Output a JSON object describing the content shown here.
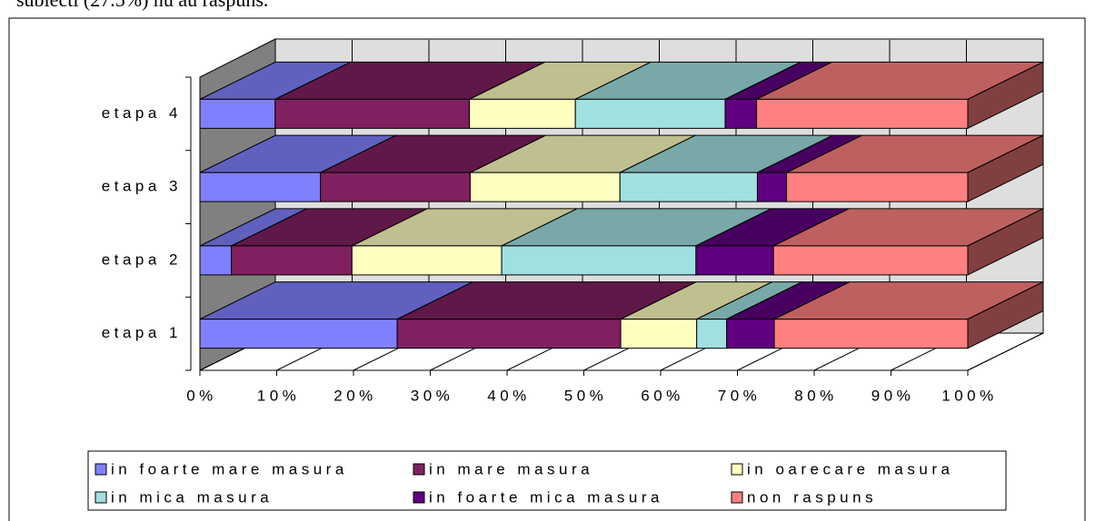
{
  "caption_above": "subiecti (27.5%) nu au raspuns.",
  "chart_data": {
    "type": "bar3d_stacked_horizontal",
    "categories": [
      "etapa 1",
      "etapa 2",
      "etapa 3",
      "etapa 4"
    ],
    "series": [
      {
        "name": "in foarte mare masura",
        "color": "#8080ff",
        "values": [
          25.7,
          4.1,
          15.7,
          9.8
        ]
      },
      {
        "name": "in mare masura",
        "color": "#802060",
        "values": [
          29.1,
          15.7,
          19.5,
          25.3
        ]
      },
      {
        "name": "in oarecare masura",
        "color": "#ffffc0",
        "values": [
          9.9,
          19.5,
          19.5,
          13.8
        ]
      },
      {
        "name": "in mica masura",
        "color": "#a0e0e0",
        "values": [
          3.9,
          25.3,
          17.9,
          19.5
        ]
      },
      {
        "name": "in foarte mica masura",
        "color": "#600080",
        "values": [
          6.2,
          10.1,
          3.8,
          4.1
        ]
      },
      {
        "name": "non raspuns",
        "color": "#ff8080",
        "values": [
          25.2,
          25.3,
          23.6,
          27.5
        ]
      }
    ],
    "xlim": [
      0,
      100
    ],
    "xticks": [
      {
        "value": 0,
        "label": "0%"
      },
      {
        "value": 10,
        "label": "10%"
      },
      {
        "value": 20,
        "label": "20%"
      },
      {
        "value": 30,
        "label": "30%"
      },
      {
        "value": 40,
        "label": "40%"
      },
      {
        "value": 50,
        "label": "50%"
      },
      {
        "value": 60,
        "label": "60%"
      },
      {
        "value": 70,
        "label": "70%"
      },
      {
        "value": 80,
        "label": "80%"
      },
      {
        "value": 90,
        "label": "90%"
      },
      {
        "value": 100,
        "label": "100%"
      }
    ],
    "grid": true,
    "legend": "bottom"
  }
}
